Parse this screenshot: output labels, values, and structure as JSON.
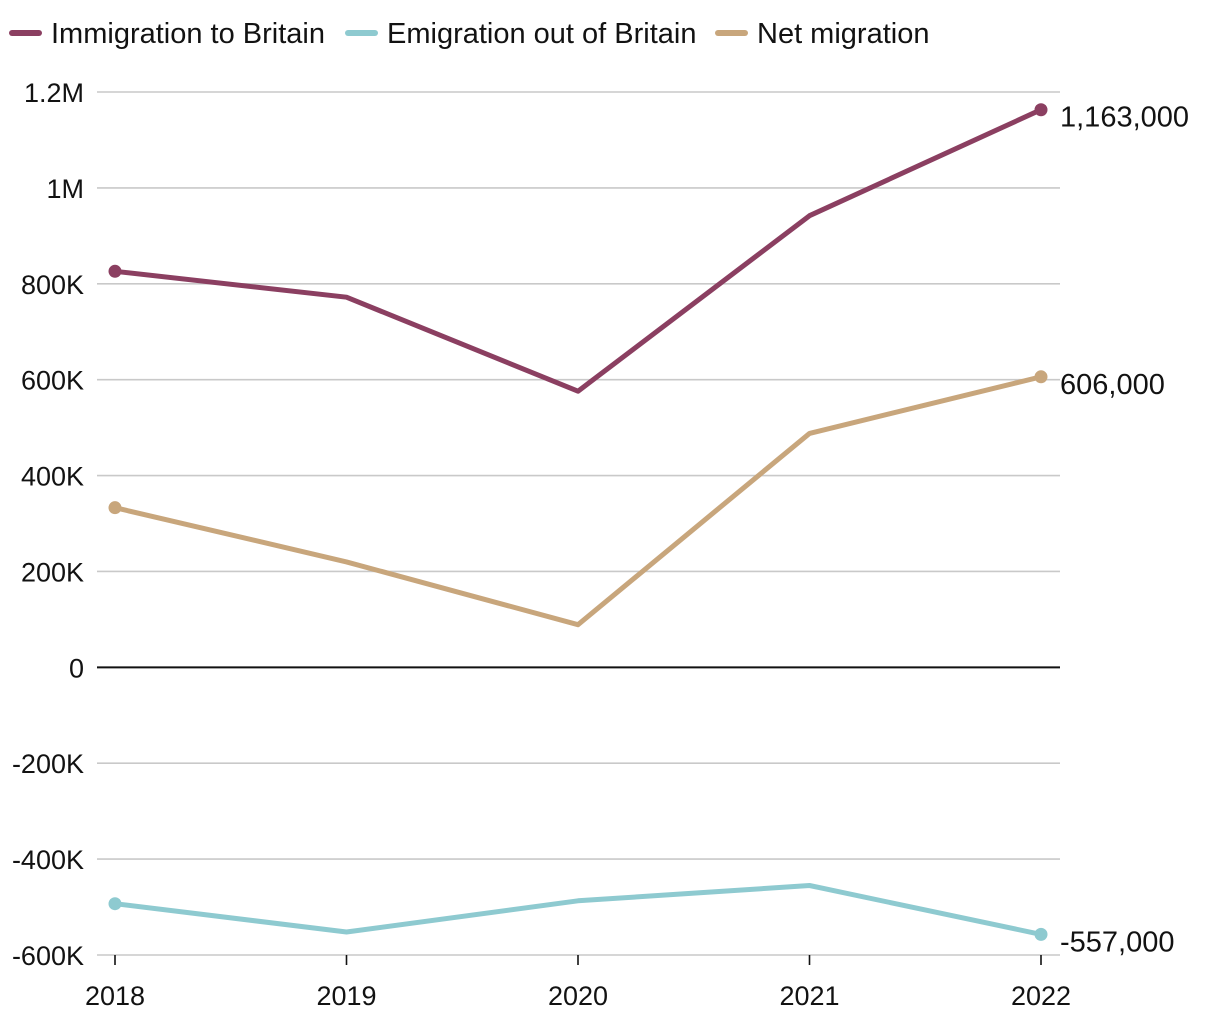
{
  "chart_data": {
    "type": "line",
    "title": "",
    "xlabel": "",
    "ylabel": "",
    "x": [
      "2018",
      "2019",
      "2020",
      "2021",
      "2022"
    ],
    "ylim": [
      -600000,
      1200000
    ],
    "yticks": [
      {
        "value": 1200000,
        "label": "1.2M"
      },
      {
        "value": 1000000,
        "label": "1M"
      },
      {
        "value": 800000,
        "label": "800K"
      },
      {
        "value": 600000,
        "label": "600K"
      },
      {
        "value": 400000,
        "label": "400K"
      },
      {
        "value": 200000,
        "label": "200K"
      },
      {
        "value": 0,
        "label": "0"
      },
      {
        "value": -200000,
        "label": "-200K"
      },
      {
        "value": -400000,
        "label": "-400K"
      },
      {
        "value": -600000,
        "label": "-600K"
      }
    ],
    "legend_position": "top-left",
    "grid": true,
    "series": [
      {
        "name": "Immigration to Britain",
        "color": "#8b3f61",
        "values": [
          826000,
          772000,
          576000,
          942000,
          1163000
        ],
        "end_label": "1,163,000"
      },
      {
        "name": "Emigration out of Britain",
        "color": "#8ecad0",
        "values": [
          -493000,
          -552000,
          -487000,
          -455000,
          -557000
        ],
        "end_label": "-557,000"
      },
      {
        "name": "Net migration",
        "color": "#c8a67c",
        "values": [
          333000,
          220000,
          89000,
          488000,
          606000
        ],
        "end_label": "606,000"
      }
    ]
  }
}
